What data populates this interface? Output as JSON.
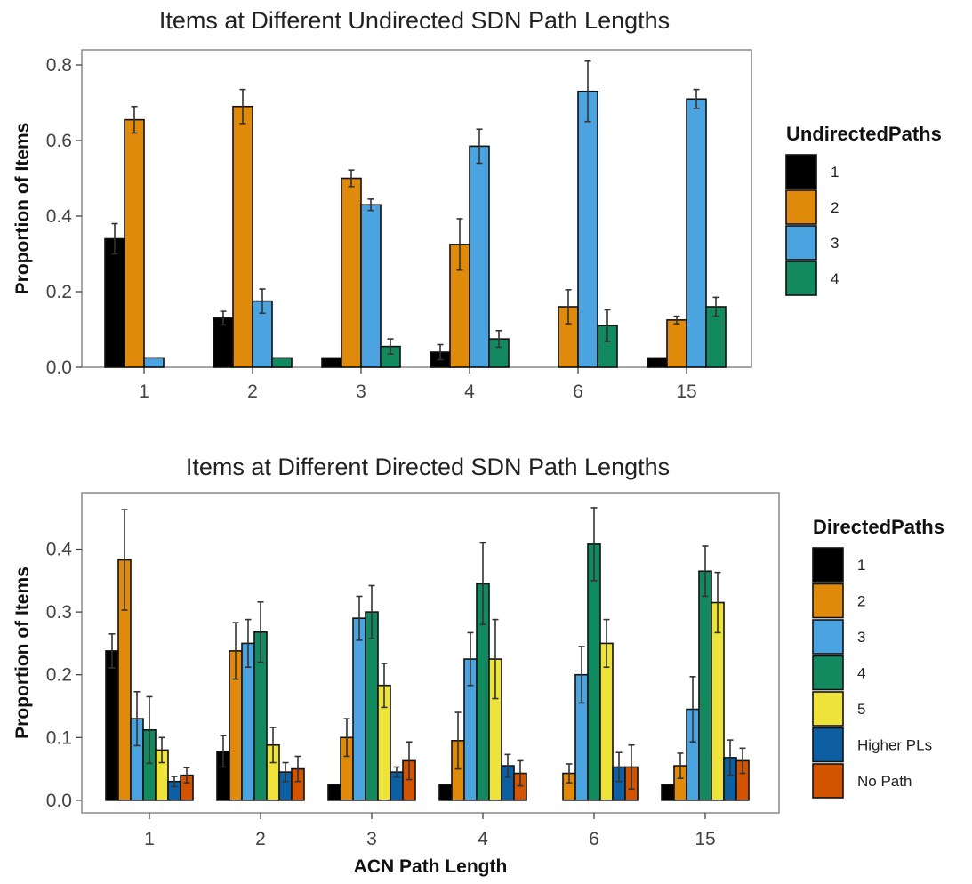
{
  "chart_data": [
    {
      "type": "bar",
      "title": "Items at Different Undirected SDN Path Lengths",
      "xlabel": "",
      "ylabel": "Proportion of Items",
      "categories": [
        "1",
        "2",
        "3",
        "4",
        "6",
        "15"
      ],
      "ylim": [
        0,
        0.84
      ],
      "yticks": [
        0.0,
        0.2,
        0.4,
        0.6,
        0.8
      ],
      "ytick_labels": [
        "0.0",
        "0.2",
        "0.4",
        "0.6",
        "0.8"
      ],
      "grid": false,
      "legend_title": "UndirectedPaths",
      "legend_position": "right",
      "series": [
        {
          "name": "1",
          "color": "#000000",
          "values": [
            0.34,
            0.13,
            0.025,
            0.04,
            null,
            0.025
          ],
          "err": [
            0.04,
            0.018,
            0,
            0.02,
            null,
            0
          ]
        },
        {
          "name": "2",
          "color": "#E08A0B",
          "values": [
            0.655,
            0.69,
            0.5,
            0.325,
            0.16,
            0.125
          ],
          "err": [
            0.035,
            0.045,
            0.022,
            0.068,
            0.045,
            0.01
          ]
        },
        {
          "name": "3",
          "color": "#4BA3E0",
          "values": [
            0.025,
            0.175,
            0.43,
            0.585,
            0.73,
            0.71
          ],
          "err": [
            0,
            0.032,
            0.015,
            0.045,
            0.08,
            0.025
          ]
        },
        {
          "name": "4",
          "color": "#12895F",
          "values": [
            null,
            0.025,
            0.055,
            0.075,
            0.11,
            0.16
          ],
          "err": [
            null,
            0,
            0.02,
            0.022,
            0.042,
            0.025
          ]
        }
      ]
    },
    {
      "type": "bar",
      "title": "Items at Different Directed SDN Path Lengths",
      "xlabel": "ACN Path Length",
      "ylabel": "Proportion of Items",
      "categories": [
        "1",
        "2",
        "3",
        "4",
        "6",
        "15"
      ],
      "ylim": [
        -0.02,
        0.49
      ],
      "yticks": [
        0.0,
        0.1,
        0.2,
        0.3,
        0.4
      ],
      "ytick_labels": [
        "0.0",
        "0.1",
        "0.2",
        "0.3",
        "0.4"
      ],
      "grid": false,
      "legend_title": "DirectedPaths",
      "legend_position": "right",
      "series": [
        {
          "name": "1",
          "color": "#000000",
          "values": [
            0.238,
            0.078,
            0.025,
            0.025,
            null,
            0.025
          ],
          "err": [
            0.027,
            0.025,
            0,
            0,
            null,
            0
          ]
        },
        {
          "name": "2",
          "color": "#E08A0B",
          "values": [
            0.383,
            0.238,
            0.1,
            0.095,
            0.043,
            0.055
          ],
          "err": [
            0.08,
            0.045,
            0.03,
            0.045,
            0.015,
            0.02
          ]
        },
        {
          "name": "3",
          "color": "#4BA3E0",
          "values": [
            0.13,
            0.25,
            0.29,
            0.225,
            0.2,
            0.145
          ],
          "err": [
            0.043,
            0.038,
            0.035,
            0.042,
            0.045,
            0.052
          ]
        },
        {
          "name": "4",
          "color": "#12895F",
          "values": [
            0.112,
            0.268,
            0.3,
            0.345,
            0.408,
            0.365
          ],
          "err": [
            0.053,
            0.048,
            0.042,
            0.065,
            0.058,
            0.04
          ]
        },
        {
          "name": "5",
          "color": "#EEE33A",
          "values": [
            0.08,
            0.088,
            0.183,
            0.225,
            0.25,
            0.315
          ],
          "err": [
            0.02,
            0.028,
            0.035,
            0.063,
            0.038,
            0.048
          ]
        },
        {
          "name": "Higher PLs",
          "color": "#0D5FA1",
          "values": [
            0.03,
            0.045,
            0.045,
            0.055,
            0.053,
            0.068
          ],
          "err": [
            0.008,
            0.015,
            0.008,
            0.018,
            0.023,
            0.028
          ]
        },
        {
          "name": "No Path",
          "color": "#D35400",
          "values": [
            0.04,
            0.05,
            0.063,
            0.043,
            0.053,
            0.063
          ],
          "err": [
            0.012,
            0.02,
            0.03,
            0.02,
            0.035,
            0.02
          ]
        }
      ]
    }
  ]
}
